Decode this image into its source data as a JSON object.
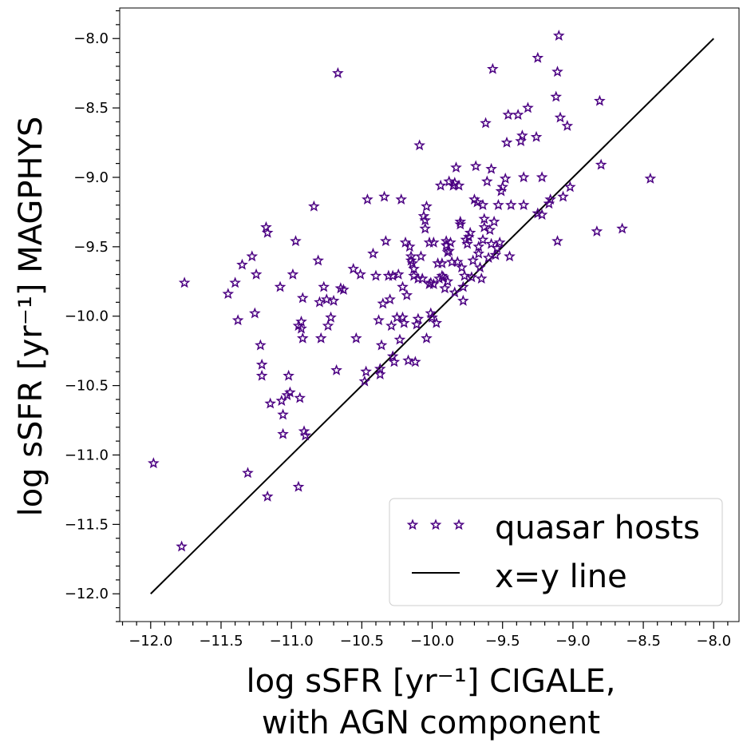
{
  "chart_data": {
    "type": "scatter",
    "xlabel_line1": "log sSFR [yr⁻¹] CIGALE,",
    "xlabel_line2": "with AGN component",
    "ylabel": "log sSFR [yr⁻¹] MAGPHYS",
    "xlim": [
      -12.22,
      -7.82
    ],
    "ylim": [
      -12.2,
      -7.78
    ],
    "xticks": [
      -12.0,
      -11.5,
      -11.0,
      -10.5,
      -10.0,
      -9.5,
      -9.0,
      -8.5,
      -8.0
    ],
    "yticks": [
      -12.0,
      -11.5,
      -11.0,
      -10.5,
      -10.0,
      -9.5,
      -9.0,
      -8.5,
      -8.0
    ],
    "xtick_labels": [
      "−12.0",
      "−11.5",
      "−11.0",
      "−10.5",
      "−10.0",
      "−9.5",
      "−9.0",
      "−8.5",
      "−8.0"
    ],
    "ytick_labels": [
      "−12.0",
      "−11.5",
      "−11.0",
      "−10.5",
      "−10.0",
      "−9.5",
      "−9.0",
      "−8.5",
      "−8.0"
    ],
    "legend": {
      "position": "lower-right",
      "entries": [
        "quasar hosts",
        "x=y line"
      ]
    },
    "colors": {
      "marker_edge": "#4b0082",
      "line": "#000000"
    },
    "series": [
      {
        "name": "quasar hosts",
        "marker": "star",
        "points": [
          [
            -11.98,
            -11.06
          ],
          [
            -11.78,
            -11.66
          ],
          [
            -11.76,
            -9.76
          ],
          [
            -11.45,
            -9.84
          ],
          [
            -11.4,
            -9.76
          ],
          [
            -11.38,
            -10.03
          ],
          [
            -11.35,
            -9.63
          ],
          [
            -11.31,
            -11.13
          ],
          [
            -11.28,
            -9.57
          ],
          [
            -11.26,
            -9.98
          ],
          [
            -11.25,
            -9.7
          ],
          [
            -11.22,
            -10.21
          ],
          [
            -11.21,
            -10.35
          ],
          [
            -11.21,
            -10.43
          ],
          [
            -11.18,
            -9.36
          ],
          [
            -11.17,
            -9.4
          ],
          [
            -11.17,
            -11.3
          ],
          [
            -11.15,
            -10.63
          ],
          [
            -11.08,
            -9.79
          ],
          [
            -11.07,
            -10.61
          ],
          [
            -11.06,
            -10.71
          ],
          [
            -11.06,
            -10.85
          ],
          [
            -11.03,
            -10.57
          ],
          [
            -11.02,
            -10.43
          ],
          [
            -11.01,
            -10.55
          ],
          [
            -10.99,
            -9.7
          ],
          [
            -10.97,
            -9.46
          ],
          [
            -10.95,
            -10.07
          ],
          [
            -10.95,
            -11.23
          ],
          [
            -10.94,
            -10.59
          ],
          [
            -10.93,
            -10.04
          ],
          [
            -10.93,
            -10.09
          ],
          [
            -10.92,
            -10.16
          ],
          [
            -10.92,
            -9.87
          ],
          [
            -10.91,
            -10.83
          ],
          [
            -10.9,
            -10.86
          ],
          [
            -10.84,
            -9.21
          ],
          [
            -10.81,
            -9.6
          ],
          [
            -10.8,
            -9.9
          ],
          [
            -10.79,
            -10.16
          ],
          [
            -10.77,
            -9.79
          ],
          [
            -10.75,
            -9.88
          ],
          [
            -10.74,
            -10.07
          ],
          [
            -10.72,
            -10.01
          ],
          [
            -10.7,
            -9.89
          ],
          [
            -10.68,
            -10.39
          ],
          [
            -10.67,
            -8.25
          ],
          [
            -10.65,
            -9.8
          ],
          [
            -10.63,
            -9.81
          ],
          [
            -10.56,
            -9.66
          ],
          [
            -10.54,
            -10.16
          ],
          [
            -10.51,
            -9.7
          ],
          [
            -10.48,
            -10.47
          ],
          [
            -10.47,
            -10.4
          ],
          [
            -10.46,
            -9.16
          ],
          [
            -10.42,
            -9.55
          ],
          [
            -10.4,
            -9.71
          ],
          [
            -10.38,
            -10.03
          ],
          [
            -10.37,
            -10.42
          ],
          [
            -10.37,
            -10.38
          ],
          [
            -10.36,
            -10.21
          ],
          [
            -10.35,
            -9.91
          ],
          [
            -10.34,
            -9.14
          ],
          [
            -10.33,
            -9.46
          ],
          [
            -10.31,
            -9.71
          ],
          [
            -10.3,
            -9.88
          ],
          [
            -10.29,
            -10.07
          ],
          [
            -10.28,
            -10.29
          ],
          [
            -10.28,
            -9.71
          ],
          [
            -10.27,
            -10.33
          ],
          [
            -10.25,
            -10.01
          ],
          [
            -10.24,
            -9.7
          ],
          [
            -10.23,
            -10.17
          ],
          [
            -10.22,
            -9.16
          ],
          [
            -10.21,
            -9.79
          ],
          [
            -10.21,
            -10.01
          ],
          [
            -10.2,
            -10.05
          ],
          [
            -10.19,
            -9.47
          ],
          [
            -10.18,
            -9.85
          ],
          [
            -10.17,
            -10.32
          ],
          [
            -10.16,
            -9.5
          ],
          [
            -10.15,
            -9.57
          ],
          [
            -10.15,
            -9.6
          ],
          [
            -10.14,
            -9.62
          ],
          [
            -10.13,
            -9.66
          ],
          [
            -10.13,
            -9.71
          ],
          [
            -10.12,
            -10.33
          ],
          [
            -10.11,
            -10.06
          ],
          [
            -10.1,
            -9.73
          ],
          [
            -10.1,
            -10.02
          ],
          [
            -10.09,
            -8.77
          ],
          [
            -10.08,
            -9.57
          ],
          [
            -10.07,
            -9.73
          ],
          [
            -10.06,
            -9.28
          ],
          [
            -10.05,
            -9.31
          ],
          [
            -10.05,
            -9.37
          ],
          [
            -10.04,
            -9.21
          ],
          [
            -10.04,
            -10.16
          ],
          [
            -10.02,
            -9.47
          ],
          [
            -10.02,
            -9.77
          ],
          [
            -10.01,
            -9.98
          ],
          [
            -10.01,
            -9.76
          ],
          [
            -10.0,
            -10.01
          ],
          [
            -9.99,
            -9.47
          ],
          [
            -9.99,
            -9.77
          ],
          [
            -9.97,
            -10.05
          ],
          [
            -9.96,
            -9.62
          ],
          [
            -9.95,
            -9.73
          ],
          [
            -9.94,
            -9.06
          ],
          [
            -9.93,
            -9.71
          ],
          [
            -9.93,
            -9.62
          ],
          [
            -9.92,
            -9.72
          ],
          [
            -9.91,
            -9.8
          ],
          [
            -9.9,
            -9.46
          ],
          [
            -9.9,
            -9.49
          ],
          [
            -9.89,
            -9.54
          ],
          [
            -9.89,
            -9.75
          ],
          [
            -9.88,
            -9.03
          ],
          [
            -9.88,
            -9.53
          ],
          [
            -9.87,
            -9.47
          ],
          [
            -9.86,
            -9.61
          ],
          [
            -9.85,
            -9.06
          ],
          [
            -9.84,
            -9.04
          ],
          [
            -9.84,
            -9.83
          ],
          [
            -9.83,
            -8.93
          ],
          [
            -9.82,
            -9.61
          ],
          [
            -9.81,
            -9.06
          ],
          [
            -9.8,
            -9.32
          ],
          [
            -9.8,
            -9.34
          ],
          [
            -9.79,
            -9.65
          ],
          [
            -9.78,
            -9.79
          ],
          [
            -9.78,
            -9.89
          ],
          [
            -9.77,
            -9.71
          ],
          [
            -9.76,
            -9.45
          ],
          [
            -9.75,
            -9.48
          ],
          [
            -9.74,
            -9.43
          ],
          [
            -9.73,
            -9.4
          ],
          [
            -9.72,
            -9.72
          ],
          [
            -9.71,
            -9.6
          ],
          [
            -9.7,
            -9.16
          ],
          [
            -9.69,
            -8.92
          ],
          [
            -9.68,
            -9.18
          ],
          [
            -9.67,
            -9.5
          ],
          [
            -9.67,
            -9.55
          ],
          [
            -9.66,
            -9.65
          ],
          [
            -9.65,
            -9.73
          ],
          [
            -9.64,
            -9.45
          ],
          [
            -9.64,
            -9.2
          ],
          [
            -9.63,
            -9.3
          ],
          [
            -9.63,
            -9.36
          ],
          [
            -9.62,
            -8.61
          ],
          [
            -9.61,
            -9.03
          ],
          [
            -9.6,
            -9.58
          ],
          [
            -9.59,
            -9.38
          ],
          [
            -9.58,
            -8.94
          ],
          [
            -9.58,
            -9.48
          ],
          [
            -9.57,
            -8.22
          ],
          [
            -9.56,
            -9.32
          ],
          [
            -9.55,
            -9.56
          ],
          [
            -9.54,
            -9.51
          ],
          [
            -9.53,
            -9.2
          ],
          [
            -9.52,
            -9.47
          ],
          [
            -9.51,
            -9.1
          ],
          [
            -9.5,
            -9.07
          ],
          [
            -9.48,
            -9.01
          ],
          [
            -9.47,
            -8.75
          ],
          [
            -9.46,
            -8.55
          ],
          [
            -9.45,
            -9.57
          ],
          [
            -9.44,
            -9.2
          ],
          [
            -9.39,
            -8.55
          ],
          [
            -9.37,
            -8.74
          ],
          [
            -9.36,
            -8.7
          ],
          [
            -9.35,
            -9.0
          ],
          [
            -9.35,
            -9.2
          ],
          [
            -9.32,
            -8.5
          ],
          [
            -9.26,
            -8.71
          ],
          [
            -9.25,
            -9.26
          ],
          [
            -9.25,
            -8.14
          ],
          [
            -9.22,
            -9.27
          ],
          [
            -9.22,
            -9.0
          ],
          [
            -9.17,
            -9.19
          ],
          [
            -9.16,
            -9.16
          ],
          [
            -9.12,
            -8.42
          ],
          [
            -9.11,
            -9.46
          ],
          [
            -9.11,
            -8.24
          ],
          [
            -9.1,
            -7.98
          ],
          [
            -9.09,
            -8.57
          ],
          [
            -9.07,
            -9.14
          ],
          [
            -9.04,
            -8.63
          ],
          [
            -9.02,
            -9.07
          ],
          [
            -8.83,
            -9.39
          ],
          [
            -8.81,
            -8.45
          ],
          [
            -8.8,
            -8.91
          ],
          [
            -8.65,
            -9.37
          ],
          [
            -8.45,
            -9.01
          ]
        ]
      },
      {
        "name": "x=y line",
        "type": "line",
        "x": [
          -12.0,
          -8.0
        ],
        "y": [
          -12.0,
          -8.0
        ]
      }
    ]
  }
}
